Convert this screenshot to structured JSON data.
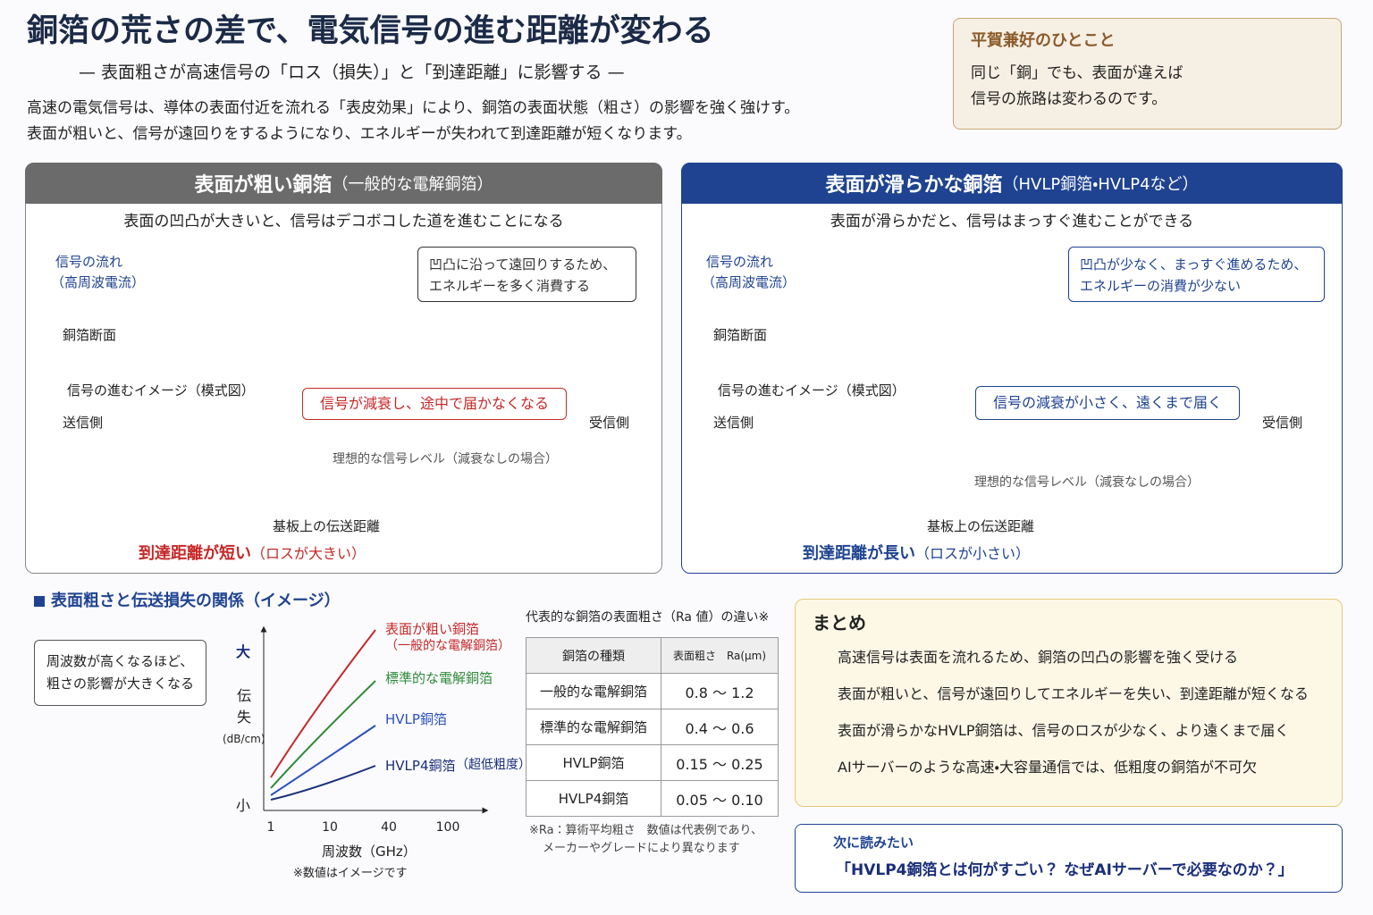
{
  "header": {
    "title": "銅箔の荒さの差で、電気信号の進む距離が変わる",
    "subtitle": "— 表面粗さが高速信号の「ロス（損失）」と「到達距離」に影響する —",
    "intro": [
      "高速の電気信号は、導体の表面付近を流れる「表皮効果」により、銅箔の表面状態（粗さ）の影響を強く強けす。",
      "表面が粗いと、信号が遠回りをするようになり、エネルギーが失われて到達距離が短くなります。"
    ]
  },
  "quote": {
    "title": "平賀兼好のひとこと",
    "lines": [
      "同じ「銅」でも、表面が違えば",
      "信号の旅路は変わるのです。"
    ]
  },
  "panels": [
    {
      "title": "表面が粗い銅箔",
      "title_note": "（一般的な電解銅箔）",
      "caption": "表面の凹凸が大きいと、信号はデコボコした道を進むことになる",
      "flow_label": [
        "信号の流れ",
        "（高周波電流）"
      ],
      "section_label": "銅箔断面",
      "callout": [
        "凹凸に沿って遠回りするため、",
        "エネルギーを多く消費する"
      ],
      "image_title": "信号の進むイメージ（模式図）",
      "sender": "送信側",
      "receiver": "受信側",
      "ideal": "理想的な信号レベル（減衰なしの場合）",
      "result_note": "信号が減衰し、途中で届かなくなる",
      "axis": "基板上の伝送距離",
      "conclusion": "到達距離が短い",
      "conclusion_note": "（ロスが大きい）"
    },
    {
      "title": "表面が滑らかな銅箔",
      "title_note": "（HVLP銅箔・HVLP4など）",
      "caption": "表面が滑らかだと、信号はまっすぐ進むことができる",
      "flow_label": [
        "信号の流れ",
        "（高周波電流）"
      ],
      "section_label": "銅箔断面",
      "callout": [
        "凹凸が少なく、まっすぐ進めるため、",
        "エネルギーの消費が少ない"
      ],
      "image_title": "信号の進むイメージ（模式図）",
      "sender": "送信側",
      "receiver": "受信側",
      "ideal": "理想的な信号レベル（減衰なしの場合）",
      "result_note": "信号の減衰が小さく、遠くまで届く",
      "axis": "基板上の伝送距離",
      "conclusion": "到達距離が長い",
      "conclusion_note": "（ロスが小さい）"
    }
  ],
  "graph": {
    "heading": "表面粗さと伝送損失の関係（イメージ）",
    "note_box": [
      "周波数が高くなるほど、",
      "粗さの影響が大きくなる"
    ],
    "y_top": "大",
    "y_label": [
      "伝",
      "失"
    ],
    "y_unit": "(dB/cm)",
    "y_bottom": "小",
    "xticks": [
      1,
      10,
      40,
      100
    ],
    "x_label": "周波数（GHz）",
    "footnote": "※数値はイメージです",
    "series": [
      {
        "name": "表面が粗い銅箔",
        "note": "（一般的な電解銅箔）",
        "color": "#c62828"
      },
      {
        "name": "標準的な電解銅箔",
        "color": "#2e8b3a"
      },
      {
        "name": "HVLP銅箔",
        "color": "#2a4fc0"
      },
      {
        "name": "HVLP4銅箔",
        "note": "（超低粗度）",
        "color": "#1a2e7a"
      }
    ]
  },
  "table": {
    "title": "代表的な銅箔の表面粗さ（Ra 値）の違い※",
    "header": [
      "銅箔の種類",
      "表面粗さ　Ra(μm)"
    ],
    "rows": [
      [
        "一般的な電解銅箔",
        "0.8 ～ 1.2"
      ],
      [
        "標準的な電解銅箔",
        "0.4 ～ 0.6"
      ],
      [
        "HVLP銅箔",
        "0.15 ～ 0.25"
      ],
      [
        "HVLP4銅箔",
        "0.05 ～ 0.10"
      ]
    ],
    "footnote": [
      "※Ra：算術平均粗さ　数値は代表例であり、",
      "メーカーやグレードにより異なります"
    ]
  },
  "summary": {
    "title": "まとめ",
    "items": [
      "高速信号は表面を流れるため、銅箔の凹凸の影響を強く受ける",
      "表面が粗いと、信号が遠回りしてエネルギーを失い、到達距離が短くなる",
      "表面が滑らかなHVLP銅箔は、信号のロスが少なく、より遠くまで届く",
      "AIサーバーのような高速・大容量通信では、低粗度の銅箔が不可欠"
    ]
  },
  "next": {
    "label": "次に読みたい",
    "link": "「HVLP4銅箔とは何がすごい？ なぜAIサーバーで必要なのか？」"
  }
}
